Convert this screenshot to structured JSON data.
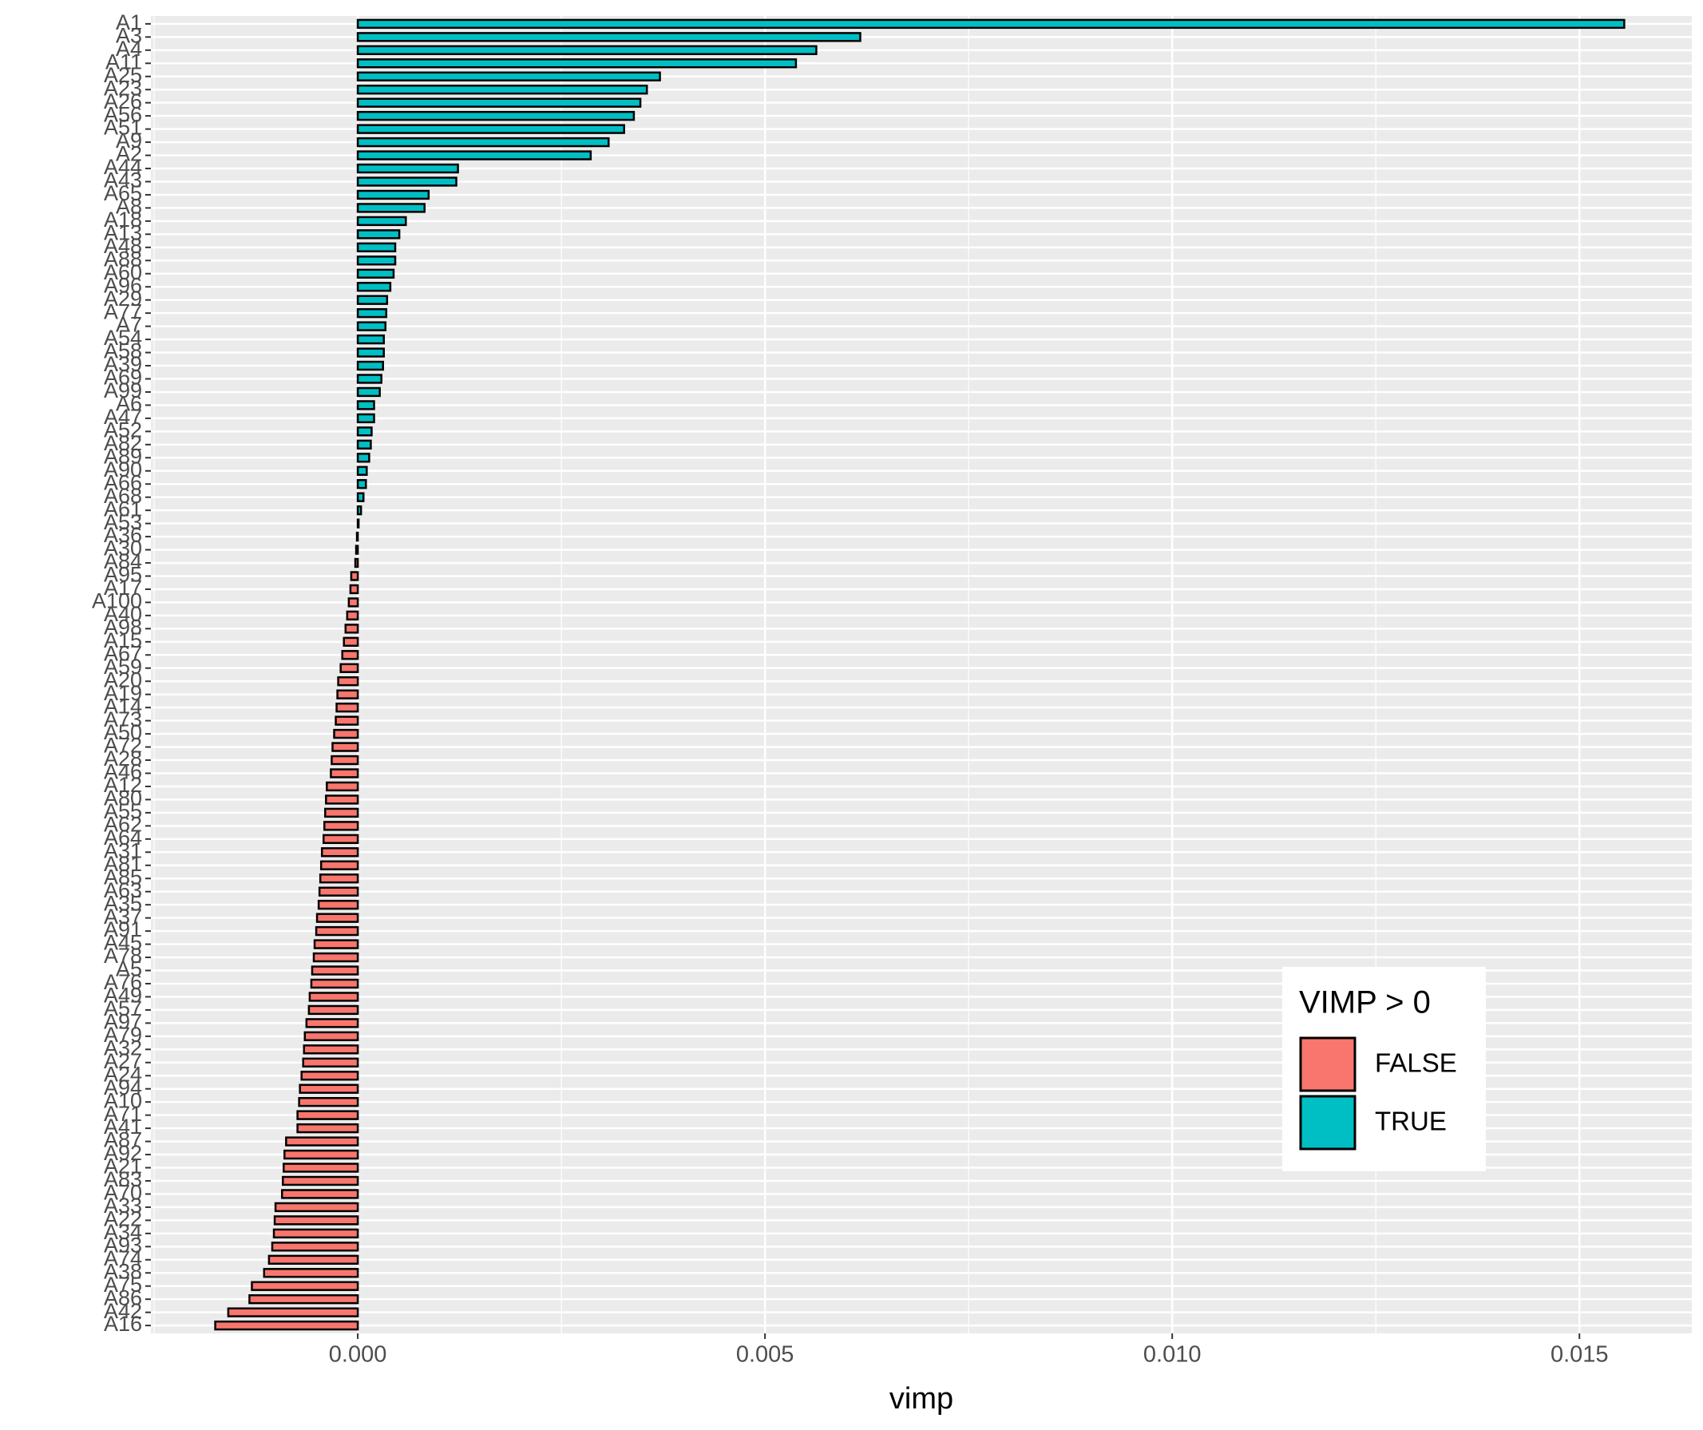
{
  "chart_data": {
    "type": "barh",
    "categories": [
      "A1",
      "A3",
      "A4",
      "A11",
      "A25",
      "A23",
      "A26",
      "A56",
      "A51",
      "A9",
      "A2",
      "A44",
      "A43",
      "A65",
      "A8",
      "A18",
      "A13",
      "A48",
      "A88",
      "A60",
      "A96",
      "A29",
      "A77",
      "A7",
      "A54",
      "A58",
      "A39",
      "A69",
      "A99",
      "A6",
      "A47",
      "A52",
      "A82",
      "A89",
      "A90",
      "A66",
      "A68",
      "A61",
      "A53",
      "A36",
      "A30",
      "A84",
      "A95",
      "A17",
      "A100",
      "A40",
      "A98",
      "A15",
      "A67",
      "A59",
      "A20",
      "A19",
      "A14",
      "A73",
      "A50",
      "A72",
      "A28",
      "A46",
      "A12",
      "A80",
      "A55",
      "A62",
      "A64",
      "A31",
      "A81",
      "A85",
      "A63",
      "A35",
      "A37",
      "A91",
      "A45",
      "A78",
      "A5",
      "A76",
      "A49",
      "A57",
      "A97",
      "A79",
      "A32",
      "A27",
      "A24",
      "A94",
      "A10",
      "A71",
      "A41",
      "A87",
      "A92",
      "A21",
      "A83",
      "A70",
      "A33",
      "A22",
      "A34",
      "A93",
      "A74",
      "A38",
      "A75",
      "A86",
      "A42",
      "A16"
    ],
    "values": [
      0.01555,
      0.00617,
      0.00563,
      0.00538,
      0.00371,
      0.00355,
      0.00347,
      0.00339,
      0.00327,
      0.00308,
      0.00286,
      0.00123,
      0.00121,
      0.00087,
      0.00082,
      0.00059,
      0.00051,
      0.00046,
      0.00046,
      0.00044,
      0.0004,
      0.00036,
      0.00035,
      0.00034,
      0.00032,
      0.00032,
      0.00031,
      0.00029,
      0.00027,
      0.0002,
      0.0002,
      0.00017,
      0.00016,
      0.00014,
      0.00011,
      0.0001,
      7e-05,
      4e-05,
      1e-05,
      -1e-05,
      -2e-05,
      -3e-05,
      -8e-05,
      -9e-05,
      -0.00011,
      -0.00013,
      -0.00015,
      -0.00017,
      -0.00019,
      -0.00021,
      -0.00024,
      -0.00025,
      -0.00026,
      -0.00027,
      -0.00029,
      -0.00031,
      -0.00032,
      -0.00033,
      -0.00038,
      -0.00039,
      -0.0004,
      -0.00041,
      -0.00042,
      -0.00044,
      -0.00045,
      -0.00046,
      -0.00047,
      -0.00048,
      -0.0005,
      -0.00051,
      -0.00053,
      -0.00054,
      -0.00056,
      -0.00057,
      -0.00059,
      -0.0006,
      -0.00063,
      -0.00065,
      -0.00066,
      -0.00067,
      -0.00069,
      -0.00071,
      -0.00072,
      -0.00074,
      -0.00074,
      -0.00088,
      -0.0009,
      -0.00091,
      -0.00092,
      -0.00093,
      -0.00101,
      -0.00102,
      -0.00103,
      -0.00105,
      -0.00109,
      -0.00115,
      -0.0013,
      -0.00133,
      -0.00159,
      -0.00175
    ],
    "xlabel": "vimp",
    "xlim": [
      -0.00254,
      0.01638
    ],
    "xticks": [
      {
        "value": 0,
        "label": "0.000"
      },
      {
        "value": 0.005,
        "label": "0.005"
      },
      {
        "value": 0.01,
        "label": "0.010"
      },
      {
        "value": 0.015,
        "label": "0.015"
      }
    ],
    "grid": true,
    "legend": {
      "title": "VIMP > 0",
      "position": "bottom-right",
      "labels": [
        "FALSE",
        "TRUE"
      ],
      "colors": [
        "#F8766D",
        "#00BFC4"
      ]
    }
  }
}
